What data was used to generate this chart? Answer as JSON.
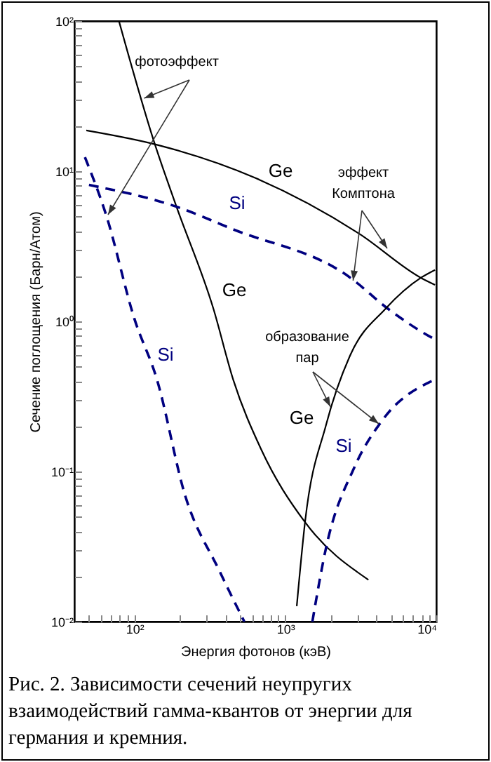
{
  "chart_data": {
    "type": "line",
    "xlabel": "Энергия фотонов (кэВ)",
    "ylabel": "Сечение поглощения (Барн/Атом)",
    "log": "xy",
    "xlim": [
      40,
      10000
    ],
    "ylim": [
      0.01,
      100
    ],
    "xticks": [
      {
        "value": 50,
        "label": null
      },
      {
        "value": 60,
        "label": null
      },
      {
        "value": 70,
        "label": null
      },
      {
        "value": 80,
        "label": null
      },
      {
        "value": 90,
        "label": null
      },
      {
        "value": 100,
        "label": "10²"
      },
      {
        "value": 200,
        "label": null
      },
      {
        "value": 300,
        "label": null
      },
      {
        "value": 400,
        "label": null
      },
      {
        "value": 500,
        "label": null
      },
      {
        "value": 600,
        "label": null
      },
      {
        "value": 700,
        "label": null
      },
      {
        "value": 800,
        "label": null
      },
      {
        "value": 900,
        "label": null
      },
      {
        "value": 1000,
        "label": "10³"
      },
      {
        "value": 2000,
        "label": null
      },
      {
        "value": 3000,
        "label": null
      },
      {
        "value": 4000,
        "label": null
      },
      {
        "value": 5000,
        "label": null
      },
      {
        "value": 6000,
        "label": null
      },
      {
        "value": 7000,
        "label": null
      },
      {
        "value": 8000,
        "label": null
      },
      {
        "value": 9000,
        "label": null
      },
      {
        "value": 10000,
        "label": "10⁴"
      }
    ],
    "yticks": [
      {
        "value": 0.01,
        "label": "10⁻²"
      },
      {
        "value": 0.02,
        "label": null
      },
      {
        "value": 0.03,
        "label": null
      },
      {
        "value": 0.04,
        "label": null
      },
      {
        "value": 0.05,
        "label": null
      },
      {
        "value": 0.06,
        "label": null
      },
      {
        "value": 0.07,
        "label": null
      },
      {
        "value": 0.08,
        "label": null
      },
      {
        "value": 0.09,
        "label": null
      },
      {
        "value": 0.1,
        "label": "10⁻¹"
      },
      {
        "value": 0.2,
        "label": null
      },
      {
        "value": 0.3,
        "label": null
      },
      {
        "value": 0.4,
        "label": null
      },
      {
        "value": 0.5,
        "label": null
      },
      {
        "value": 0.6,
        "label": null
      },
      {
        "value": 0.7,
        "label": null
      },
      {
        "value": 0.8,
        "label": null
      },
      {
        "value": 0.9,
        "label": null
      },
      {
        "value": 1,
        "label": "10⁰"
      },
      {
        "value": 2,
        "label": null
      },
      {
        "value": 3,
        "label": null
      },
      {
        "value": 4,
        "label": null
      },
      {
        "value": 5,
        "label": null
      },
      {
        "value": 6,
        "label": null
      },
      {
        "value": 7,
        "label": null
      },
      {
        "value": 8,
        "label": null
      },
      {
        "value": 9,
        "label": null
      },
      {
        "value": 10,
        "label": "10¹"
      },
      {
        "value": 20,
        "label": null
      },
      {
        "value": 30,
        "label": null
      },
      {
        "value": 40,
        "label": null
      },
      {
        "value": 50,
        "label": null
      },
      {
        "value": 60,
        "label": null
      },
      {
        "value": 70,
        "label": null
      },
      {
        "value": 80,
        "label": null
      },
      {
        "value": 90,
        "label": null
      },
      {
        "value": 100,
        "label": "10²"
      }
    ],
    "grid": false,
    "marker": "none",
    "series": [
      {
        "name": "Ge",
        "color": "#000000",
        "line_style": "solid",
        "x": [
          79,
          135,
          190,
          334,
          451,
          690,
          1350,
          3550
        ],
        "values": [
          100,
          15.7,
          5.8,
          1.21,
          0.41,
          0.141,
          0.046,
          0.019
        ]
      },
      {
        "name": "Si",
        "color": "#000080",
        "line_style": "dashed",
        "x": [
          47,
          65,
          100,
          141,
          217,
          364,
          535
        ],
        "values": [
          12.4,
          5.1,
          1.04,
          0.41,
          0.069,
          0.022,
          0.01
        ]
      },
      {
        "name": "Ge",
        "color": "#000000",
        "line_style": "solid",
        "x": [
          48,
          141,
          635,
          3125,
          7900,
          9800
        ],
        "values": [
          18.7,
          15,
          9,
          3.8,
          1.95,
          1.75
        ]
      },
      {
        "name": "Si",
        "color": "#000080",
        "line_style": "dashed",
        "x": [
          50,
          190,
          451,
          2700,
          4800,
          9100,
          10000
        ],
        "values": [
          8.1,
          5.8,
          4.1,
          1.95,
          1.21,
          0.79,
          0.75
        ]
      },
      {
        "name": "Ge",
        "color": "#000000",
        "line_style": "solid",
        "x": [
          1190,
          1350,
          1860,
          2700,
          4600,
          7900,
          9800
        ],
        "values": [
          0.0127,
          0.046,
          0.204,
          0.6,
          1.21,
          1.95,
          2.2
        ]
      },
      {
        "name": "Si",
        "color": "#000080",
        "line_style": "dashed",
        "x": [
          1510,
          1860,
          2870,
          4400,
          9800
        ],
        "values": [
          0.01,
          0.031,
          0.107,
          0.22,
          0.41
        ]
      }
    ],
    "annotations": [
      {
        "text": "фотоэффект",
        "x": 116,
        "y": 30.6
      },
      {
        "text": "эффект Комптона",
        "x": 2810,
        "y": 1.87
      },
      {
        "text": "образование пар",
        "x": 1990,
        "y": 0.27
      },
      "Рис. 2. Зависимости сечений неупругих взаимодействий гамма-квантов от энергии для германия и кремния."
    ]
  }
}
